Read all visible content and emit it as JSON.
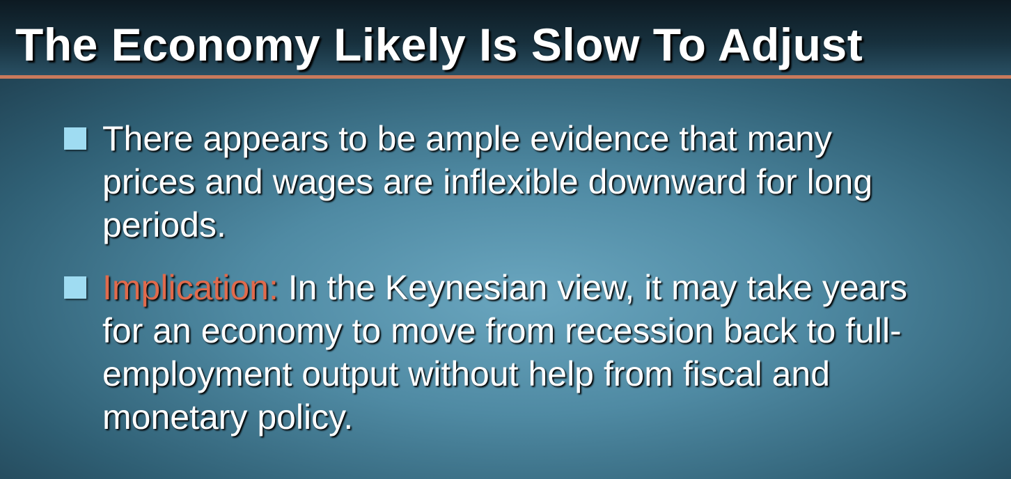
{
  "slide": {
    "title": "The Economy Likely Is Slow To Adjust",
    "colors": {
      "background": "#4f8aa3",
      "title_rule": "#c97a5c",
      "bullet": "#9fdcf2",
      "highlight": "#e06a4c",
      "text": "#ffffff"
    },
    "bullets": [
      {
        "text": "There appears to be ample evidence that many prices and wages are inflexible downward for long periods."
      },
      {
        "label": "Implication:",
        "text": " In the Keynesian view, it may take years for an economy to move from recession back to full-employment output without help from fiscal and monetary policy."
      }
    ]
  }
}
